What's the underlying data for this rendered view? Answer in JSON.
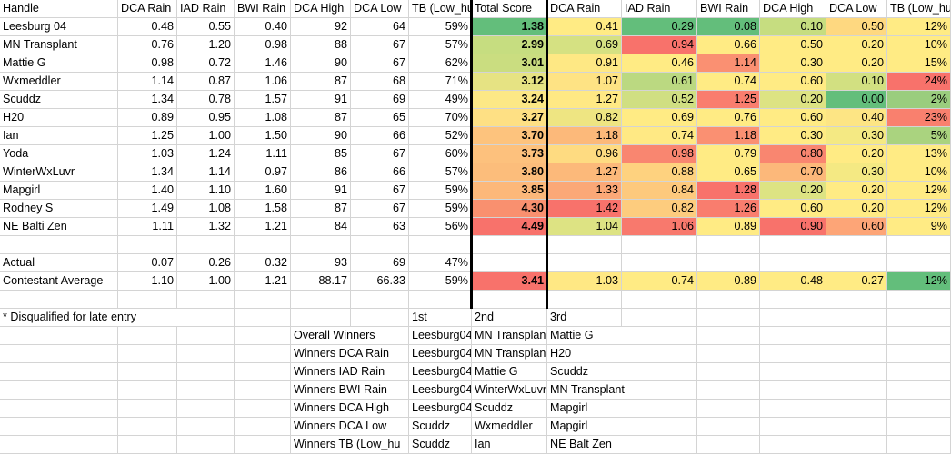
{
  "headers": [
    "Handle",
    "DCA Rain",
    "IAD Rain",
    "BWI Rain",
    "DCA High",
    "DCA Low",
    "TB (Low_hu",
    "Total Score",
    "DCA Rain",
    "IAD Rain",
    "BWI Rain",
    "DCA High",
    "DCA Low",
    "TB (Low_hu"
  ],
  "rows": [
    {
      "handle": "Leesburg 04",
      "vals": [
        "0.48",
        "0.55",
        "0.40",
        "92",
        "64",
        "59%"
      ],
      "total": "1.38",
      "scores": [
        "0.41",
        "0.29",
        "0.08",
        "0.10",
        "0.50",
        "12%"
      ]
    },
    {
      "handle": "MN Transplant",
      "vals": [
        "0.76",
        "1.20",
        "0.98",
        "88",
        "67",
        "57%"
      ],
      "total": "2.99",
      "scores": [
        "0.69",
        "0.94",
        "0.66",
        "0.50",
        "0.20",
        "10%"
      ]
    },
    {
      "handle": "Mattie G",
      "vals": [
        "0.98",
        "0.72",
        "1.46",
        "90",
        "67",
        "62%"
      ],
      "total": "3.01",
      "scores": [
        "0.91",
        "0.46",
        "1.14",
        "0.30",
        "0.20",
        "15%"
      ]
    },
    {
      "handle": "Wxmeddler",
      "vals": [
        "1.14",
        "0.87",
        "1.06",
        "87",
        "68",
        "71%"
      ],
      "total": "3.12",
      "scores": [
        "1.07",
        "0.61",
        "0.74",
        "0.60",
        "0.10",
        "24%"
      ]
    },
    {
      "handle": "Scuddz",
      "vals": [
        "1.34",
        "0.78",
        "1.57",
        "91",
        "69",
        "49%"
      ],
      "total": "3.24",
      "scores": [
        "1.27",
        "0.52",
        "1.25",
        "0.20",
        "0.00",
        "2%"
      ]
    },
    {
      "handle": "H20",
      "vals": [
        "0.89",
        "0.95",
        "1.08",
        "87",
        "65",
        "70%"
      ],
      "total": "3.27",
      "scores": [
        "0.82",
        "0.69",
        "0.76",
        "0.60",
        "0.40",
        "23%"
      ]
    },
    {
      "handle": "Ian",
      "vals": [
        "1.25",
        "1.00",
        "1.50",
        "90",
        "66",
        "52%"
      ],
      "total": "3.70",
      "scores": [
        "1.18",
        "0.74",
        "1.18",
        "0.30",
        "0.30",
        "5%"
      ]
    },
    {
      "handle": "Yoda",
      "vals": [
        "1.03",
        "1.24",
        "1.11",
        "85",
        "67",
        "60%"
      ],
      "total": "3.73",
      "scores": [
        "0.96",
        "0.98",
        "0.79",
        "0.80",
        "0.20",
        "13%"
      ]
    },
    {
      "handle": "WinterWxLuvr",
      "vals": [
        "1.34",
        "1.14",
        "0.97",
        "86",
        "66",
        "57%"
      ],
      "total": "3.80",
      "scores": [
        "1.27",
        "0.88",
        "0.65",
        "0.70",
        "0.30",
        "10%"
      ]
    },
    {
      "handle": "Mapgirl",
      "vals": [
        "1.40",
        "1.10",
        "1.60",
        "91",
        "67",
        "59%"
      ],
      "total": "3.85",
      "scores": [
        "1.33",
        "0.84",
        "1.28",
        "0.20",
        "0.20",
        "12%"
      ]
    },
    {
      "handle": "Rodney S",
      "vals": [
        "1.49",
        "1.08",
        "1.58",
        "87",
        "67",
        "59%"
      ],
      "total": "4.30",
      "scores": [
        "1.42",
        "0.82",
        "1.26",
        "0.60",
        "0.20",
        "12%"
      ]
    },
    {
      "handle": "NE Balti Zen",
      "vals": [
        "1.11",
        "1.32",
        "1.21",
        "84",
        "63",
        "56%"
      ],
      "total": "4.49",
      "scores": [
        "1.04",
        "1.06",
        "0.89",
        "0.90",
        "0.60",
        "9%"
      ]
    }
  ],
  "actual": {
    "label": "Actual",
    "vals": [
      "0.07",
      "0.26",
      "0.32",
      "93",
      "69",
      "47%"
    ]
  },
  "average": {
    "label": "Contestant Average",
    "vals": [
      "1.10",
      "1.00",
      "1.21",
      "88.17",
      "66.33",
      "59%"
    ],
    "total": "3.41",
    "scores": [
      "1.03",
      "0.74",
      "0.89",
      "0.48",
      "0.27",
      "12%"
    ]
  },
  "note": "* Disqualified for late entry",
  "winners_headers": [
    "1st",
    "2nd",
    "3rd"
  ],
  "winners": [
    {
      "category": "Overall Winners",
      "first": "Leesburg04",
      "second": "MN Transplant",
      "third": "Mattie G"
    },
    {
      "category": "Winners DCA Rain",
      "first": "Leesburg04",
      "second": "MN Transplant",
      "third": "H20"
    },
    {
      "category": "Winners IAD Rain",
      "first": "Leesburg04",
      "second": "Mattie G",
      "third": "Scuddz"
    },
    {
      "category": "Winners BWI Rain",
      "first": "Leesburg04",
      "second": "WinterWxLuvr",
      "third": "MN Transplant"
    },
    {
      "category": "Winners DCA High",
      "first": "Leesburg04",
      "second": "Scuddz",
      "third": "Mapgirl"
    },
    {
      "category": "Winners DCA Low",
      "first": "Scuddz",
      "second": "Wxmeddler",
      "third": "Mapgirl"
    },
    {
      "category": "Winners TB (Low_hu",
      "first": "Scuddz",
      "second": "Ian",
      "third": "NE Balt Zen"
    }
  ],
  "colors": {
    "row_totals": [
      "#63be7b",
      "#c6dd80",
      "#cadd80",
      "#e6e383",
      "#fce886",
      "#fee084",
      "#fdc37d",
      "#fdc17d",
      "#fcbd7b",
      "#fcb87a",
      "#f9906f",
      "#f8726b"
    ],
    "avg_total": "#f8726b",
    "score_cols": [
      [
        "#ffeb84",
        "#d5e182",
        "#fee884",
        "#fee384",
        "#ffe984",
        "#eee582",
        "#fcb97a",
        "#fedb81",
        "#fcb97a",
        "#fba877",
        "#f8726b",
        "#dde383"
      ],
      [
        "#63be7b",
        "#f8726b",
        "#ffeb84",
        "#bbd981",
        "#d0df82",
        "#ffeb84",
        "#ffe984",
        "#f98670",
        "#fed27f",
        "#fdc97d",
        "#fdcc7e",
        "#f8796d"
      ],
      [
        "#63be7b",
        "#ffeb84",
        "#fa9072",
        "#ffeb84",
        "#f97d6e",
        "#ffeb84",
        "#fa9072",
        "#ffeb84",
        "#ffeb84",
        "#f8726b",
        "#f97d6e",
        "#ffeb84"
      ],
      [
        "#c6dd80",
        "#ffeb84",
        "#ffeb84",
        "#ffeb84",
        "#dde383",
        "#ffeb84",
        "#ffeb84",
        "#f98670",
        "#fcb87a",
        "#dde383",
        "#ffeb84",
        "#f8726b"
      ],
      [
        "#fed880",
        "#ffeb84",
        "#ffeb84",
        "#d2e081",
        "#63be7b",
        "#fde584",
        "#f4e983",
        "#ffeb84",
        "#f4e983",
        "#ffeb84",
        "#ffeb84",
        "#fda577"
      ],
      [
        "#ffeb84",
        "#ffeb84",
        "#ffeb84",
        "#f8726b",
        "#9acd7e",
        "#f9806e",
        "#aad37f",
        "#ffeb84",
        "#ffeb84",
        "#ffeb84",
        "#ffeb84",
        "#ffeb84"
      ]
    ],
    "avg_scores": [
      "#ffe884",
      "#ffeb84",
      "#ffeb84",
      "#ffeb84",
      "#ffeb84",
      "#63be7b"
    ]
  }
}
